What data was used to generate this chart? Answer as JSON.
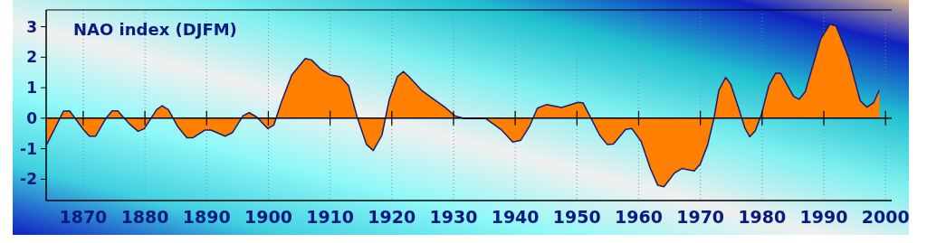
{
  "chart_data": {
    "type": "area",
    "title": "NAO index (DJFM)",
    "x": [
      1864.1,
      1866.8,
      1867.8,
      1870,
      1871,
      1872,
      1873.7,
      1874.7,
      1875.6,
      1877.4,
      1878.9,
      1879.9,
      1881.9,
      1882.8,
      1883.8,
      1885.3,
      1886.8,
      1887.8,
      1889.7,
      1890.7,
      1893,
      1894.2,
      1895.9,
      1896.9,
      1898.1,
      1899.9,
      1900.9,
      1902.1,
      1903.8,
      1906,
      1907,
      1908.5,
      1910,
      1911.7,
      1913,
      1914.4,
      1915.9,
      1917,
      1918.4,
      1919.6,
      1920.9,
      1921.9,
      1922.8,
      1924.8,
      1926.8,
      1928.8,
      1930.2,
      1931.7,
      1935.2,
      1937.7,
      1939.6,
      1940.9,
      1942.3,
      1943.6,
      1945.1,
      1947.5,
      1950.2,
      1951,
      1952.2,
      1953.7,
      1954.9,
      1955.9,
      1957.9,
      1958.9,
      1960.4,
      1961.9,
      1963.1,
      1964.1,
      1965.8,
      1967,
      1969,
      1970,
      1971.2,
      1972.2,
      1973,
      1974.1,
      1974.9,
      1976.2,
      1977.2,
      1978,
      1978.9,
      1979.9,
      1981.1,
      1982.2,
      1983,
      1985.1,
      1986,
      1987,
      1989.5,
      1991,
      1992,
      1994,
      1995.9,
      1997,
      1998.1,
      1999
    ],
    "series": [
      {
        "color": "#ff8000",
        "values": [
          -0.86,
          0.23,
          0.24,
          -0.36,
          -0.59,
          -0.59,
          0,
          0.24,
          0.24,
          -0.17,
          -0.43,
          -0.34,
          0.28,
          0.41,
          0.28,
          -0.27,
          -0.64,
          -0.64,
          -0.39,
          -0.39,
          -0.59,
          -0.47,
          0.08,
          0.18,
          0.04,
          -0.34,
          -0.22,
          0.52,
          1.42,
          1.96,
          1.91,
          1.61,
          1.42,
          1.36,
          1.07,
          0.03,
          -0.86,
          -1.06,
          -0.56,
          0.62,
          1.36,
          1.53,
          1.36,
          0.92,
          0.62,
          0.33,
          0.08,
          -0.01,
          -0.01,
          -0.37,
          -0.78,
          -0.72,
          -0.27,
          0.33,
          0.45,
          0.35,
          0.52,
          0.5,
          0.03,
          -0.56,
          -0.86,
          -0.85,
          -0.37,
          -0.34,
          -0.76,
          -1.65,
          -2.2,
          -2.25,
          -1.8,
          -1.65,
          -1.73,
          -1.5,
          -0.86,
          0,
          0.92,
          1.34,
          1.12,
          0.33,
          -0.32,
          -0.61,
          -0.41,
          0.13,
          1.07,
          1.48,
          1.47,
          0.72,
          0.62,
          0.87,
          2.6,
          3.08,
          3.02,
          2,
          0.57,
          0.36,
          0.52,
          0.92
        ]
      }
    ],
    "xlim": [
      1864,
      2001
    ],
    "ylim": [
      -2.7,
      3.55
    ],
    "xticks": [
      1870,
      1880,
      1890,
      1900,
      1910,
      1920,
      1930,
      1940,
      1950,
      1960,
      1970,
      1980,
      1990,
      2000
    ],
    "yticks": [
      -2,
      -1,
      0,
      1,
      2,
      3
    ],
    "grid": "x"
  }
}
